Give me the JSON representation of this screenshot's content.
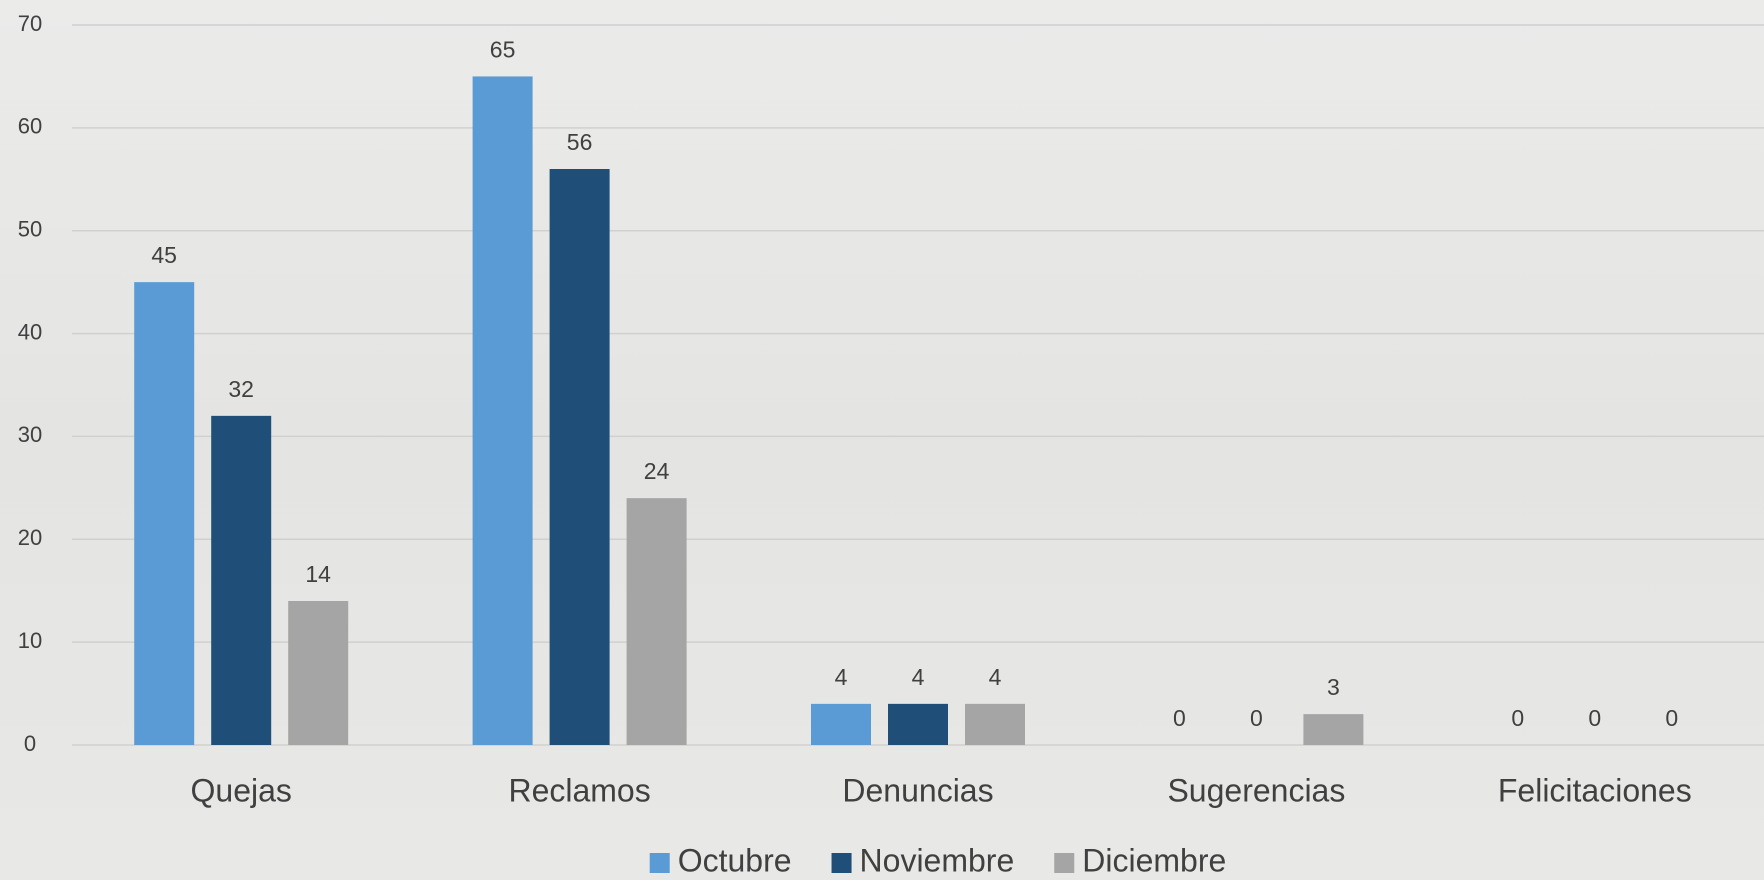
{
  "chart_data": {
    "type": "bar",
    "categories": [
      "Quejas",
      "Reclamos",
      "Denuncias",
      "Sugerencias",
      "Felicitaciones"
    ],
    "series": [
      {
        "name": "Octubre",
        "color": "#5b9bd5",
        "values": [
          45,
          65,
          4,
          0,
          0
        ]
      },
      {
        "name": "Noviembre",
        "color": "#1f4e79",
        "values": [
          32,
          56,
          4,
          0,
          0
        ]
      },
      {
        "name": "Diciembre",
        "color": "#a5a5a5",
        "values": [
          14,
          24,
          4,
          3,
          0
        ]
      }
    ],
    "ylim": [
      0,
      70
    ],
    "yticks": [
      0,
      10,
      20,
      30,
      40,
      50,
      60,
      70
    ],
    "grid": true,
    "legend": "bottom"
  }
}
